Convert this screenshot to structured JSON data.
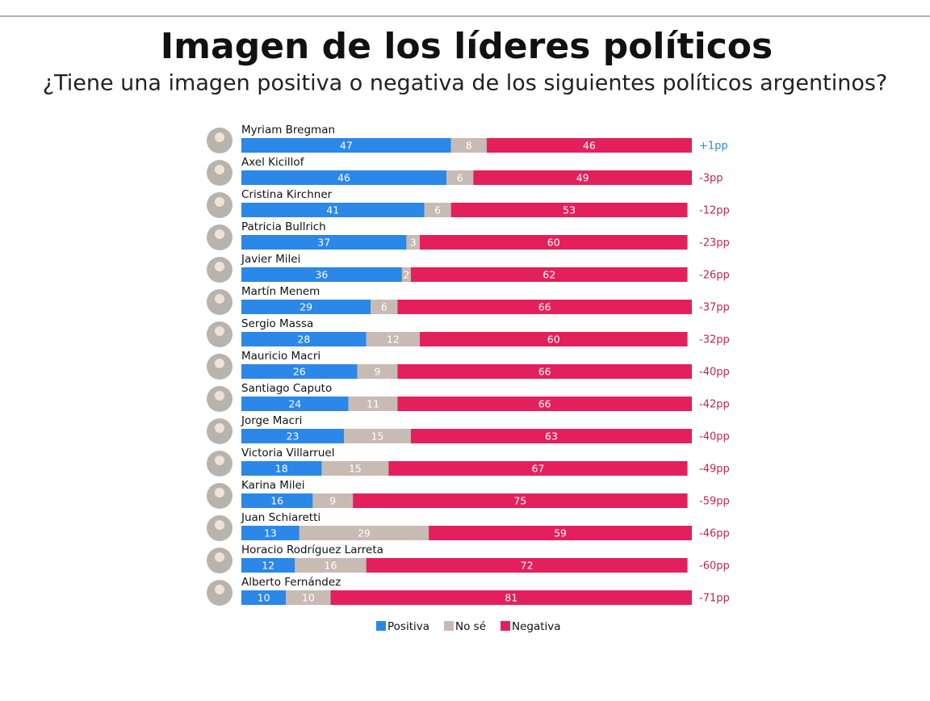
{
  "chart_data": {
    "type": "stacked-bar-horizontal",
    "title": "Imagen de los líderes políticos",
    "subtitle": "¿Tiene una imagen positiva o negativa de los siguientes políticos argentinos?",
    "categories": [
      "Myriam Bregman",
      "Axel Kicillof",
      "Cristina Kirchner",
      "Patricia Bullrich",
      "Javier Milei",
      "Martín Menem",
      "Sergio Massa",
      "Mauricio Macri",
      "Santiago Caputo",
      "Jorge Macri",
      "Victoria Villarruel",
      "Karina Milei",
      "Juan Schiaretti",
      "Horacio Rodríguez Larreta",
      "Alberto Fernández"
    ],
    "series": [
      {
        "name": "Positiva",
        "color": "#2b87e8",
        "values": [
          47,
          46,
          41,
          37,
          36,
          29,
          28,
          26,
          24,
          23,
          18,
          16,
          13,
          12,
          10
        ]
      },
      {
        "name": "No sé",
        "color": "#c8bbb3",
        "values": [
          8,
          6,
          6,
          3,
          2,
          6,
          12,
          9,
          11,
          15,
          15,
          9,
          29,
          16,
          10
        ]
      },
      {
        "name": "Negativa",
        "color": "#e3205c",
        "values": [
          46,
          49,
          53,
          60,
          62,
          66,
          60,
          66,
          66,
          63,
          67,
          75,
          59,
          72,
          81
        ]
      }
    ],
    "annotations": [
      "+1pp",
      "-3pp",
      "-12pp",
      "-23pp",
      "-26pp",
      "-37pp",
      "-32pp",
      "-40pp",
      "-42pp",
      "-40pp",
      "-49pp",
      "-59pp",
      "-46pp",
      "-60pp",
      "-71pp"
    ],
    "legend": "bottom"
  }
}
